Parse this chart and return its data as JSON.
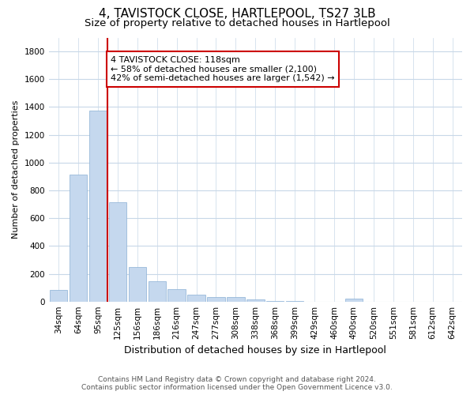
{
  "title": "4, TAVISTOCK CLOSE, HARTLEPOOL, TS27 3LB",
  "subtitle": "Size of property relative to detached houses in Hartlepool",
  "xlabel": "Distribution of detached houses by size in Hartlepool",
  "ylabel": "Number of detached properties",
  "categories": [
    "34sqm",
    "64sqm",
    "95sqm",
    "125sqm",
    "156sqm",
    "186sqm",
    "216sqm",
    "247sqm",
    "277sqm",
    "308sqm",
    "338sqm",
    "368sqm",
    "399sqm",
    "429sqm",
    "460sqm",
    "490sqm",
    "520sqm",
    "551sqm",
    "581sqm",
    "612sqm",
    "642sqm"
  ],
  "values": [
    85,
    915,
    1375,
    715,
    250,
    148,
    88,
    52,
    30,
    30,
    17,
    5,
    5,
    0,
    0,
    20,
    0,
    0,
    0,
    0,
    0
  ],
  "bar_color": "#c5d8ee",
  "bar_edge_color": "#8ab0d4",
  "vline_color": "#cc0000",
  "annotation_text": "4 TAVISTOCK CLOSE: 118sqm\n← 58% of detached houses are smaller (2,100)\n42% of semi-detached houses are larger (1,542) →",
  "annotation_box_color": "#cc0000",
  "ylim": [
    0,
    1900
  ],
  "yticks": [
    0,
    200,
    400,
    600,
    800,
    1000,
    1200,
    1400,
    1600,
    1800
  ],
  "bg_color": "#ffffff",
  "grid_color": "#c8d8e8",
  "footer_line1": "Contains HM Land Registry data © Crown copyright and database right 2024.",
  "footer_line2": "Contains public sector information licensed under the Open Government Licence v3.0.",
  "title_fontsize": 11,
  "subtitle_fontsize": 9.5,
  "xlabel_fontsize": 9,
  "ylabel_fontsize": 8,
  "tick_fontsize": 7.5,
  "footer_fontsize": 6.5,
  "annotation_fontsize": 8
}
